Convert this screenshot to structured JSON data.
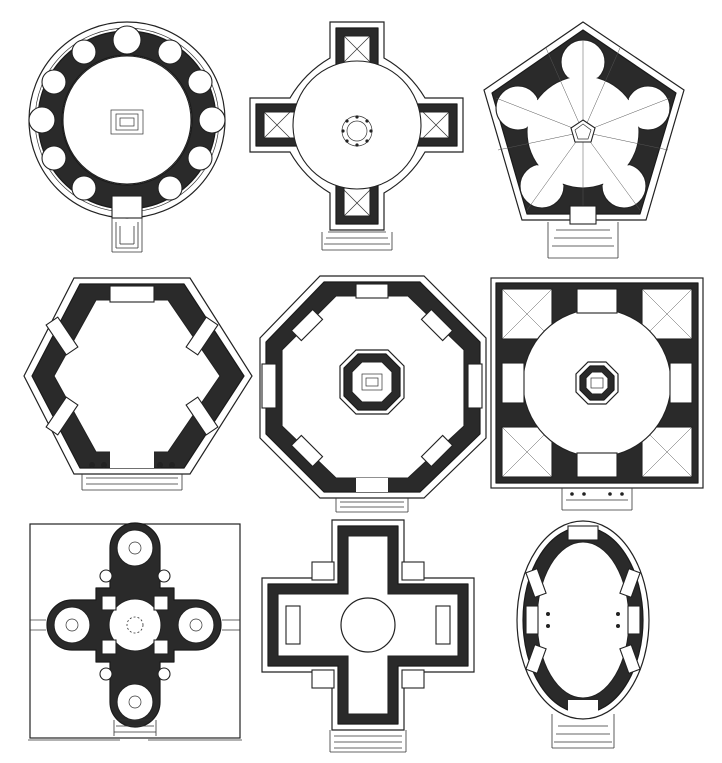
{
  "sheet": {
    "ink_color": "#222222",
    "fill_color": "#2a2a2a",
    "paper_color": "#ffffff"
  },
  "plans": [
    {
      "id": "circular",
      "shape": "circle"
    },
    {
      "id": "greek-cross-rotunda",
      "shape": "cross-with-circle"
    },
    {
      "id": "pentagonal",
      "shape": "pentagon"
    },
    {
      "id": "hexagonal",
      "shape": "hexagon"
    },
    {
      "id": "octagonal",
      "shape": "octagon"
    },
    {
      "id": "square-with-octagon",
      "shape": "square"
    },
    {
      "id": "quatrefoil-in-square",
      "shape": "quatrefoil"
    },
    {
      "id": "greek-cross-domed",
      "shape": "cross"
    },
    {
      "id": "oval",
      "shape": "ellipse"
    }
  ]
}
